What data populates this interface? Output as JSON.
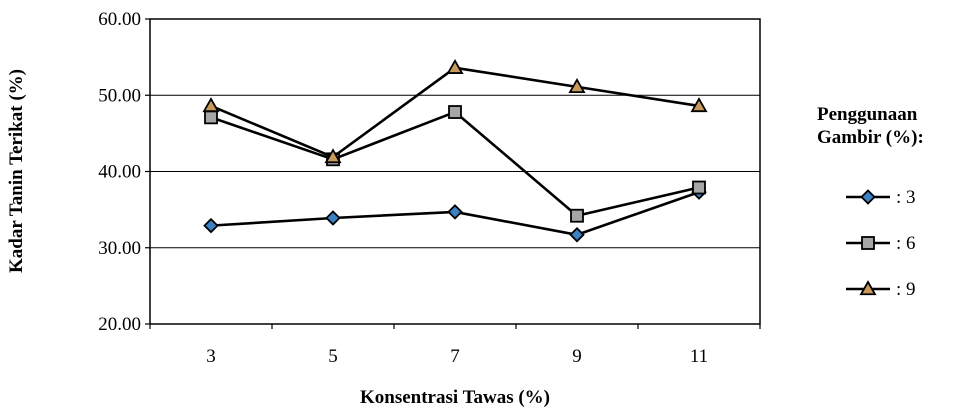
{
  "chart_data": {
    "type": "line",
    "categories": [
      "3",
      "5",
      "7",
      "9",
      "11"
    ],
    "y_ticks": [
      "20.00",
      "30.00",
      "40.00",
      "50.00",
      "60.00"
    ],
    "ylim": [
      20,
      60
    ],
    "xlabel": "Konsentrasi Tawas (%)",
    "ylabel": "Kadar Tanin Terikat (%)",
    "grid": "horizontal",
    "legend": {
      "position": "right",
      "title_line1": "Penggunaan",
      "title_line2": "Gambir  (%):"
    },
    "series": [
      {
        "name": ": 3",
        "marker": "diamond",
        "marker_color": "#3b82c4",
        "values": [
          32.9,
          33.9,
          34.7,
          31.7,
          37.3
        ]
      },
      {
        "name": ": 6",
        "marker": "square",
        "marker_color": "#a6a6a6",
        "values": [
          47.1,
          41.6,
          47.8,
          34.2,
          37.9
        ]
      },
      {
        "name": ": 9",
        "marker": "triangle",
        "marker_color": "#c89a5a",
        "values": [
          48.6,
          41.9,
          53.6,
          51.1,
          48.6
        ]
      }
    ]
  }
}
